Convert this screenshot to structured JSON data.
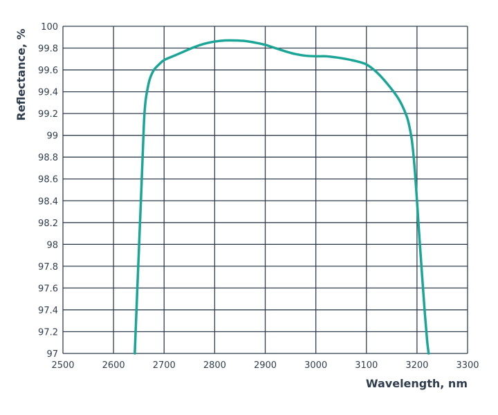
{
  "chart_data": {
    "type": "line",
    "title": "",
    "xlabel": "Wavelength, nm",
    "ylabel": "Reflectance, %",
    "xlim": [
      2500,
      3300
    ],
    "ylim": [
      97,
      100
    ],
    "x_ticks": [
      "2500",
      "2600",
      "2700",
      "2800",
      "2900",
      "3000",
      "3100",
      "3200",
      "3300"
    ],
    "y_ticks": [
      "97",
      "97.2",
      "97.4",
      "97.6",
      "97.8",
      "98",
      "98.2",
      "98.4",
      "98.6",
      "98.8",
      "99",
      "99.2",
      "99.4",
      "99.6",
      "99.8",
      "100"
    ],
    "grid": true,
    "legend": "none",
    "colors": {
      "series": "#1ba597",
      "grid": "#2f3d4e",
      "text": "#2f3d4e"
    },
    "series": [
      {
        "x": [
          2642,
          2648,
          2655,
          2660,
          2663,
          2667,
          2672,
          2680,
          2690,
          2700,
          2720,
          2740,
          2760,
          2780,
          2800,
          2820,
          2840,
          2860,
          2880,
          2900,
          2920,
          2940,
          2960,
          2980,
          3000,
          3020,
          3040,
          3060,
          3080,
          3100,
          3120,
          3140,
          3160,
          3170,
          3180,
          3185,
          3190,
          3195,
          3200,
          3205,
          3210,
          3215,
          3220,
          3223
        ],
        "y": [
          97.0,
          97.7,
          98.5,
          99.1,
          99.3,
          99.42,
          99.52,
          99.6,
          99.65,
          99.69,
          99.73,
          99.77,
          99.81,
          99.84,
          99.86,
          99.87,
          99.87,
          99.865,
          99.85,
          99.83,
          99.8,
          99.77,
          99.745,
          99.73,
          99.725,
          99.725,
          99.715,
          99.7,
          99.68,
          99.65,
          99.58,
          99.48,
          99.36,
          99.28,
          99.17,
          99.08,
          98.95,
          98.72,
          98.4,
          98.05,
          97.72,
          97.4,
          97.12,
          97.0
        ]
      }
    ]
  }
}
